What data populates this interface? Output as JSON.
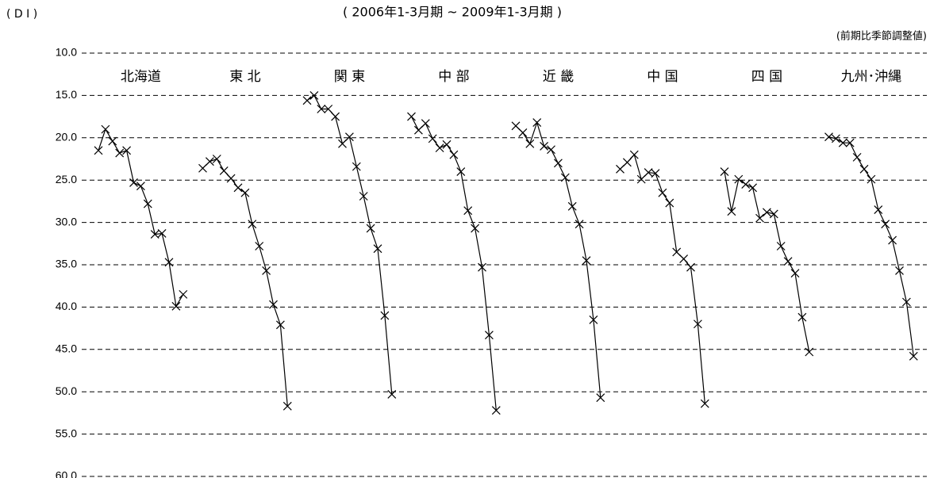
{
  "chart_data": {
    "type": "line",
    "title": "( 2006年1-3月期 ~ 2009年1-3月期 )",
    "subtitle": "(前期比季節調整値)",
    "y_label": "( D I )",
    "ylim": [
      10,
      60
    ],
    "invert_y": true,
    "yticks": [
      {
        "value": 10,
        "label": "10.0"
      },
      {
        "value": 15,
        "label": "15.0"
      },
      {
        "value": 20,
        "label": "20.0"
      },
      {
        "value": 25,
        "label": "25.0"
      },
      {
        "value": 30,
        "label": "30.0"
      },
      {
        "value": 35,
        "label": "35.0"
      },
      {
        "value": 40,
        "label": "40.0"
      },
      {
        "value": 45,
        "label": "45.0"
      },
      {
        "value": 50,
        "label": "50.0"
      },
      {
        "value": 55,
        "label": "55.0"
      },
      {
        "value": 60,
        "label": "60.0"
      }
    ],
    "grid": true,
    "color": "#000000",
    "series": [
      {
        "name": "北海道",
        "color": "#000000",
        "values": [
          21.5,
          19.0,
          20.4,
          21.8,
          21.5,
          25.3,
          25.7,
          27.8,
          31.4,
          31.3,
          34.7,
          39.9,
          38.5
        ]
      },
      {
        "name": "東 北",
        "color": "#000000",
        "values": [
          23.6,
          22.8,
          22.5,
          23.9,
          24.8,
          25.9,
          26.5,
          30.2,
          32.8,
          35.7,
          39.7,
          42.1,
          51.7
        ]
      },
      {
        "name": "関 東",
        "color": "#000000",
        "values": [
          15.6,
          15.0,
          16.6,
          16.6,
          17.5,
          20.7,
          19.9,
          23.4,
          26.9,
          30.7,
          33.1,
          41.0,
          50.3
        ]
      },
      {
        "name": "中 部",
        "color": "#000000",
        "values": [
          17.5,
          19.1,
          18.3,
          20.1,
          21.2,
          20.8,
          22.0,
          24.0,
          28.6,
          30.7,
          35.3,
          43.3,
          52.2
        ]
      },
      {
        "name": "近 畿",
        "color": "#000000",
        "values": [
          18.6,
          19.4,
          20.7,
          18.2,
          21.0,
          21.4,
          23.0,
          24.7,
          28.1,
          30.2,
          34.5,
          41.5,
          50.7
        ]
      },
      {
        "name": "中 国",
        "color": "#000000",
        "values": [
          23.7,
          22.9,
          22.0,
          24.9,
          24.1,
          24.2,
          26.5,
          27.7,
          33.5,
          34.3,
          35.3,
          42.0,
          51.4
        ]
      },
      {
        "name": "四 国",
        "color": "#000000",
        "values": [
          24.0,
          28.7,
          24.9,
          25.5,
          25.9,
          29.5,
          28.8,
          29.0,
          32.8,
          34.6,
          36.0,
          41.2,
          45.3
        ]
      },
      {
        "name": "九州･沖縄",
        "color": "#000000",
        "values": [
          19.9,
          20.1,
          20.6,
          20.6,
          22.3,
          23.7,
          24.9,
          28.5,
          30.2,
          32.1,
          35.7,
          39.4,
          45.8
        ]
      }
    ]
  }
}
